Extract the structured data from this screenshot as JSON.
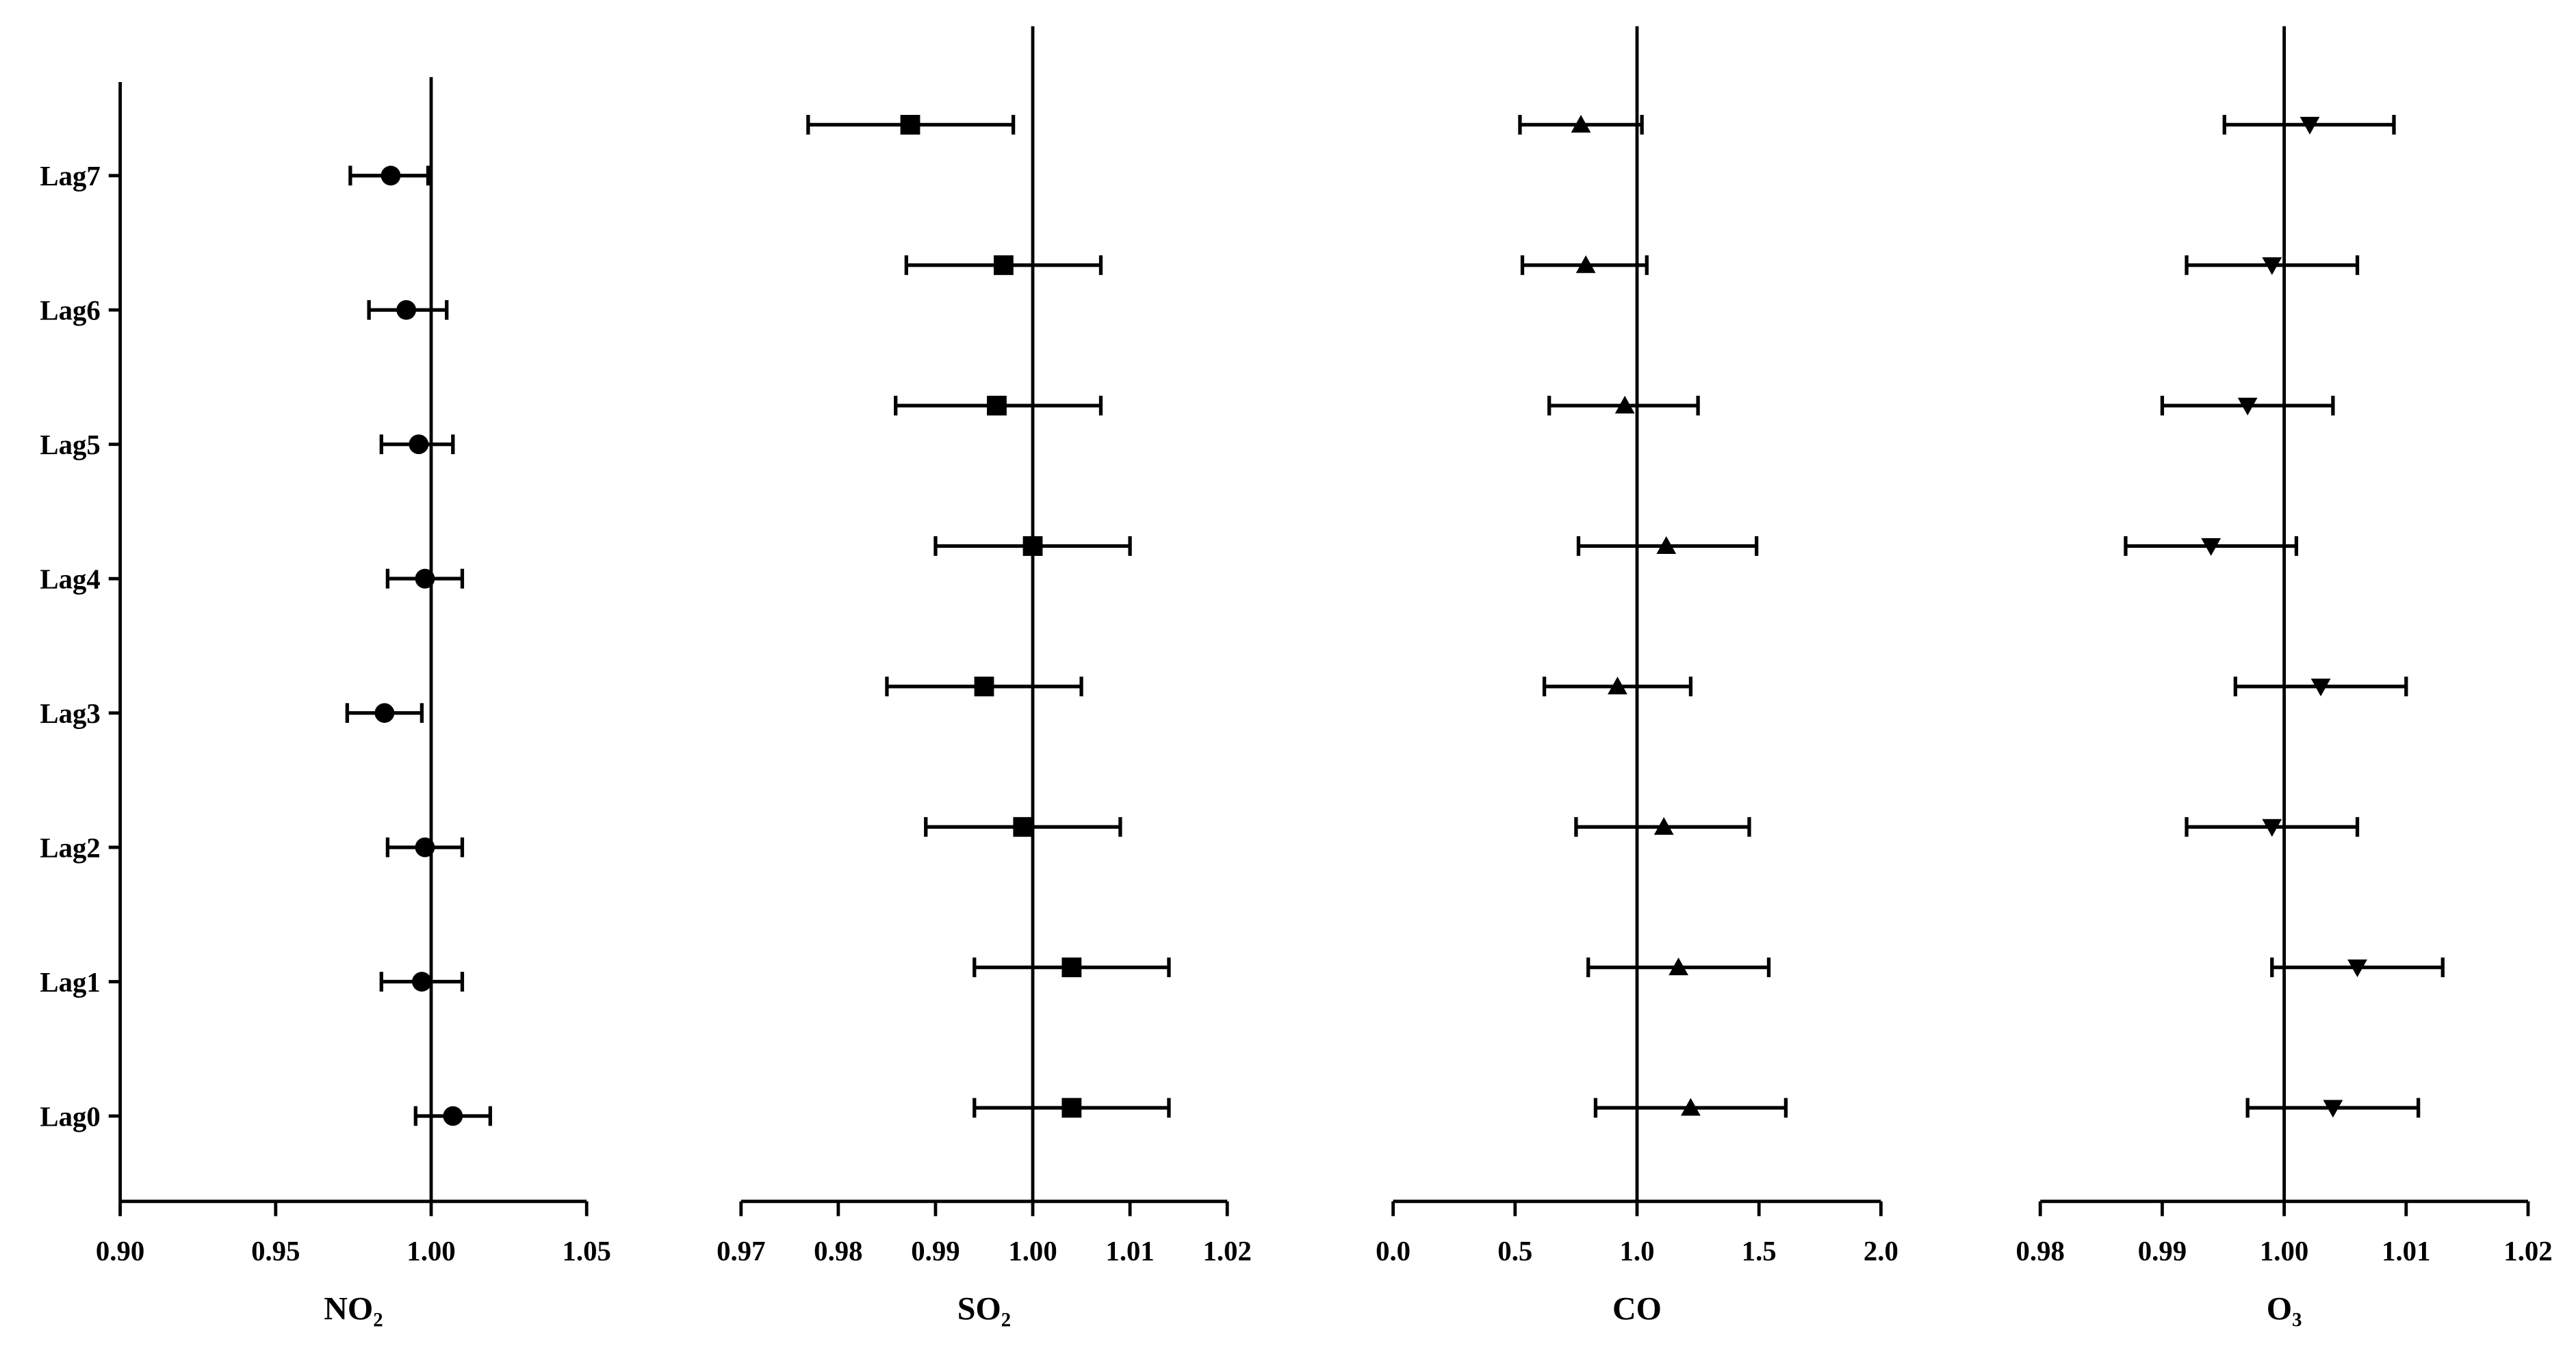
{
  "chart_data": [
    {
      "type": "forest",
      "x_label": "NO₂",
      "marker": "circle",
      "color": "#000000",
      "reference": 1,
      "categories": [
        "Lag7",
        "Lag6",
        "Lag5",
        "Lag4",
        "Lag3",
        "Lag2",
        "Lag1",
        "Lag0"
      ],
      "values": [
        0.987,
        0.992,
        0.996,
        0.998,
        0.985,
        0.998,
        0.997,
        1.007
      ],
      "lower": [
        0.974,
        0.98,
        0.984,
        0.986,
        0.973,
        0.986,
        0.984,
        0.995
      ],
      "upper": [
        0.999,
        1.005,
        1.007,
        1.01,
        0.997,
        1.01,
        1.01,
        1.019
      ],
      "xlim": [
        0.9,
        1.05
      ],
      "xticks": [
        {
          "value": 0.9,
          "label": "0.90"
        },
        0.95,
        {
          "value": 1,
          "label": "1.00"
        },
        1.05
      ]
    },
    {
      "type": "forest",
      "x_label": "SO₂",
      "marker": "square",
      "color": "#000000",
      "reference": 1,
      "values": [
        0.9874,
        0.997,
        0.9963,
        1.0,
        0.995,
        0.999,
        1.004,
        1.004
      ],
      "lower": [
        0.9769,
        0.987,
        0.9859,
        0.99,
        0.985,
        0.989,
        0.994,
        0.994
      ],
      "upper": [
        0.998,
        1.007,
        1.007,
        1.01,
        1.005,
        1.009,
        1.014,
        1.014
      ],
      "xlim": [
        0.97,
        1.02
      ],
      "xticks": [
        0.97,
        0.98,
        0.99,
        {
          "value": 1,
          "label": "1.00"
        },
        1.01,
        1.02
      ]
    },
    {
      "type": "forest",
      "x_label": "CO",
      "marker": "triangle-up",
      "color": "#000000",
      "reference": 1,
      "values": [
        0.77,
        0.79,
        0.95,
        1.12,
        0.92,
        1.11,
        1.17,
        1.22
      ],
      "lower": [
        0.52,
        0.53,
        0.64,
        0.76,
        0.62,
        0.75,
        0.8,
        0.83
      ],
      "upper": [
        1.02,
        1.04,
        1.25,
        1.49,
        1.22,
        1.46,
        1.54,
        1.61
      ],
      "xlim": [
        0,
        2
      ],
      "xticks": [
        {
          "value": 0,
          "label": "0.0"
        },
        0.5,
        {
          "value": 1,
          "label": "1.0"
        },
        1.5,
        {
          "value": 2,
          "label": "2.0"
        }
      ]
    },
    {
      "type": "forest",
      "x_label": "O₃",
      "marker": "triangle-down",
      "color": "#000000",
      "reference": 1,
      "values": [
        1.0021,
        0.999,
        0.997,
        0.994,
        1.003,
        0.999,
        1.006,
        1.004
      ],
      "lower": [
        0.9951,
        0.992,
        0.99,
        0.987,
        0.996,
        0.992,
        0.999,
        0.997
      ],
      "upper": [
        1.009,
        1.006,
        1.004,
        1.001,
        1.01,
        1.006,
        1.013,
        1.011
      ],
      "xlim": [
        0.98,
        1.02
      ],
      "xticks": [
        0.98,
        0.99,
        {
          "value": 1,
          "label": "1.00"
        },
        1.01,
        1.02
      ]
    }
  ]
}
